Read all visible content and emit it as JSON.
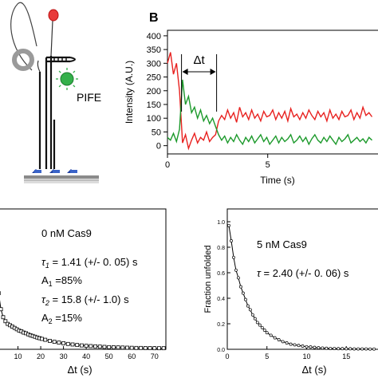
{
  "figure": {
    "panel_label": "B",
    "pife_label": "PIFE"
  },
  "colors": {
    "red": "#e8211f",
    "green": "#1d9a2c",
    "pife_green": "#33b04a",
    "dye_red": "#e83a3a",
    "black": "#000000"
  },
  "chart_data": [
    {
      "id": "intensity-trace",
      "type": "line",
      "xlabel": "Time (s)",
      "ylabel": "Intensity (A.U.)",
      "xlim": [
        0,
        10.5
      ],
      "ylim": [
        -30,
        420
      ],
      "xticks": [
        0,
        5
      ],
      "yticks": [
        0,
        50,
        100,
        150,
        200,
        250,
        300,
        350,
        400
      ],
      "annotation": "Δt",
      "annotation_range": [
        0.7,
        2.45
      ],
      "grid": false,
      "series": [
        {
          "color": "red",
          "x": [
            0.0,
            0.15,
            0.3,
            0.45,
            0.6,
            0.75,
            0.9,
            1.05,
            1.2,
            1.35,
            1.5,
            1.65,
            1.8,
            1.95,
            2.1,
            2.25,
            2.4,
            2.55,
            2.7,
            2.85,
            3.0,
            3.15,
            3.3,
            3.45,
            3.6,
            3.75,
            3.9,
            4.05,
            4.2,
            4.35,
            4.5,
            4.65,
            4.8,
            4.95,
            5.1,
            5.25,
            5.4,
            5.55,
            5.7,
            5.85,
            6.0,
            6.15,
            6.3,
            6.45,
            6.6,
            6.75,
            6.9,
            7.05,
            7.2,
            7.35,
            7.5,
            7.65,
            7.8,
            7.95,
            8.1,
            8.25,
            8.4,
            8.55,
            8.7,
            8.85,
            9.0,
            9.15,
            9.3,
            9.45,
            9.6,
            9.75,
            9.9,
            10.05,
            10.2
          ],
          "y": [
            300,
            340,
            260,
            300,
            200,
            10,
            40,
            -10,
            20,
            45,
            10,
            30,
            20,
            50,
            15,
            30,
            40,
            90,
            110,
            95,
            130,
            100,
            120,
            85,
            140,
            105,
            120,
            95,
            130,
            100,
            115,
            90,
            125,
            105,
            110,
            130,
            95,
            120,
            100,
            125,
            90,
            135,
            105,
            115,
            95,
            120,
            100,
            130,
            110,
            95,
            125,
            105,
            120,
            90,
            130,
            100,
            115,
            95,
            125,
            105,
            110,
            130,
            95,
            120,
            100,
            140,
            110,
            120,
            105
          ]
        },
        {
          "color": "green",
          "x": [
            0.0,
            0.15,
            0.3,
            0.45,
            0.6,
            0.75,
            0.9,
            1.05,
            1.2,
            1.35,
            1.5,
            1.65,
            1.8,
            1.95,
            2.1,
            2.25,
            2.4,
            2.55,
            2.7,
            2.85,
            3.0,
            3.15,
            3.3,
            3.45,
            3.6,
            3.75,
            3.9,
            4.05,
            4.2,
            4.35,
            4.5,
            4.65,
            4.8,
            4.95,
            5.1,
            5.25,
            5.4,
            5.55,
            5.7,
            5.85,
            6.0,
            6.15,
            6.3,
            6.45,
            6.6,
            6.75,
            6.9,
            7.05,
            7.2,
            7.35,
            7.5,
            7.65,
            7.8,
            7.95,
            8.1,
            8.25,
            8.4,
            8.55,
            8.7,
            8.85,
            9.0,
            9.15,
            9.3,
            9.45,
            9.6,
            9.75,
            9.9,
            10.05,
            10.2
          ],
          "y": [
            30,
            20,
            45,
            15,
            60,
            240,
            150,
            180,
            120,
            140,
            100,
            130,
            90,
            110,
            80,
            100,
            70,
            40,
            20,
            35,
            10,
            30,
            15,
            40,
            20,
            5,
            30,
            15,
            35,
            10,
            25,
            40,
            15,
            30,
            5,
            20,
            35,
            10,
            30,
            15,
            25,
            40,
            10,
            20,
            35,
            15,
            30,
            5,
            25,
            40,
            20,
            10,
            30,
            15,
            35,
            20,
            5,
            30,
            15,
            25,
            40,
            10,
            20,
            30,
            15,
            25,
            10,
            30,
            20
          ]
        }
      ]
    },
    {
      "id": "decay-0nM",
      "type": "scatter",
      "xlabel": "Δt (s)",
      "xlim": [
        0,
        75
      ],
      "ylim": [
        0,
        1.05
      ],
      "xticks": [
        10,
        20,
        30,
        40,
        50,
        60,
        70
      ],
      "xticklabels": [
        "10",
        "20",
        "30",
        "40",
        "50",
        "60",
        "70"
      ],
      "annotations": [
        "0 nM Cas9",
        "1.41 (+/- 0. 05) s",
        "A",
        "1",
        " =85%",
        "15.8 (+/- 1.0) s",
        "A",
        "2",
        " =15%"
      ],
      "tau_labels": [
        "τ",
        "1",
        " = ",
        "τ",
        "2",
        " = "
      ],
      "grid": false,
      "series": [
        {
          "x": [
            0.5,
            1.5,
            2.5,
            3.5,
            4.5,
            5.5,
            6.5,
            7.5,
            8.5,
            9.5,
            10.5,
            11.5,
            12.5,
            13.5,
            14.5,
            15.5,
            16.5,
            17.5,
            18.5,
            19.5,
            20.5,
            22,
            24,
            26,
            28,
            30,
            32,
            34,
            36,
            38,
            40,
            42,
            44,
            46,
            48,
            50,
            52,
            54,
            56,
            58,
            60,
            62,
            64,
            66,
            68,
            70,
            72,
            74
          ],
          "y": [
            0.6,
            0.42,
            0.3,
            0.24,
            0.21,
            0.19,
            0.18,
            0.17,
            0.16,
            0.15,
            0.14,
            0.135,
            0.125,
            0.12,
            0.112,
            0.105,
            0.1,
            0.094,
            0.088,
            0.083,
            0.078,
            0.071,
            0.063,
            0.056,
            0.05,
            0.045,
            0.04,
            0.036,
            0.032,
            0.029,
            0.026,
            0.024,
            0.022,
            0.02,
            0.018,
            0.016,
            0.015,
            0.014,
            0.013,
            0.012,
            0.011,
            0.01,
            0.01,
            0.009,
            0.009,
            0.008,
            0.008,
            0.008
          ]
        }
      ]
    },
    {
      "id": "decay-5nM",
      "type": "scatter",
      "xlabel": "Δt (s)",
      "ylabel": "Fraction unfolded",
      "xlim": [
        0,
        19
      ],
      "ylim": [
        0,
        1.1
      ],
      "xticks": [
        0,
        5,
        10,
        15
      ],
      "yticks": [
        0.0,
        0.2,
        0.4,
        0.6,
        0.8,
        1.0
      ],
      "yticklabels": [
        "0.0",
        "0.2",
        "0.4",
        "0.6",
        "0.8",
        "1.0"
      ],
      "annotations": [
        "5 nM Cas9",
        "τ",
        " = 2.40 (+/- 0. 06) s"
      ],
      "grid": false,
      "series": [
        {
          "x": [
            0.2,
            0.5,
            0.8,
            1.1,
            1.4,
            1.7,
            2.0,
            2.3,
            2.6,
            2.9,
            3.2,
            3.5,
            3.8,
            4.1,
            4.4,
            4.7,
            5.0,
            5.5,
            6.0,
            6.5,
            7.0,
            7.5,
            8.0,
            8.5,
            9.0,
            9.5,
            10.0,
            10.5,
            11.0,
            11.5,
            12.0,
            12.5,
            13.0,
            13.5,
            14.0,
            14.5,
            15.0,
            15.5,
            16.0,
            16.5,
            17.0,
            17.5,
            18.0,
            18.5
          ],
          "y": [
            0.97,
            0.85,
            0.72,
            0.62,
            0.56,
            0.49,
            0.44,
            0.39,
            0.34,
            0.31,
            0.27,
            0.24,
            0.21,
            0.19,
            0.17,
            0.15,
            0.13,
            0.11,
            0.09,
            0.075,
            0.06,
            0.05,
            0.04,
            0.035,
            0.03,
            0.025,
            0.02,
            0.018,
            0.015,
            0.012,
            0.01,
            0.008,
            0.006,
            0.006,
            0.005,
            0.005,
            0.004,
            0.004,
            0.003,
            0.003,
            0.003,
            0.003,
            0.002,
            0.002
          ]
        }
      ]
    }
  ]
}
